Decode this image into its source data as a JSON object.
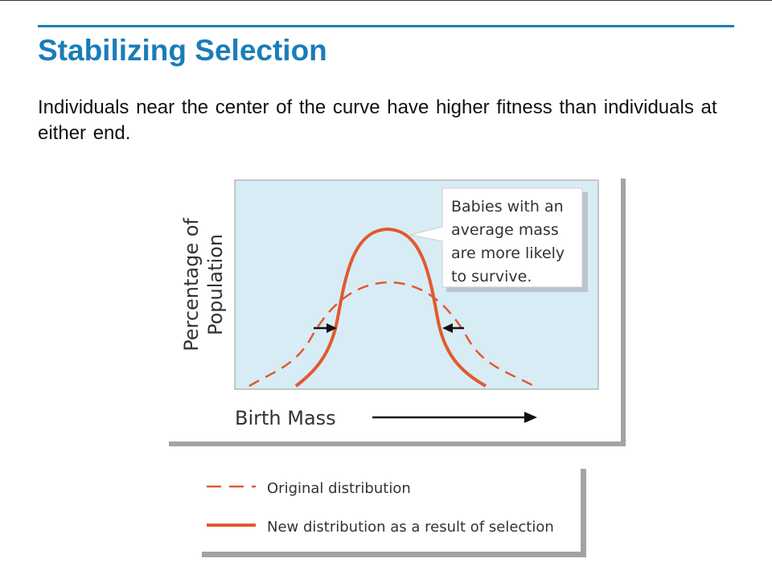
{
  "slide": {
    "title": "Stabilizing Selection",
    "body": "Individuals near the center of the curve have higher fitness than individuals at either end."
  },
  "figure": {
    "ylabel_line1": "Percentage of",
    "ylabel_line2": "Population",
    "xlabel": "Birth Mass",
    "callout": [
      "Babies with an",
      "average mass",
      "are more likely",
      "to survive."
    ],
    "legend": [
      {
        "label": "Original distribution",
        "style": "dashed"
      },
      {
        "label": "New distribution as a result of selection",
        "style": "solid"
      }
    ]
  },
  "colors": {
    "title": "#1a7db8",
    "curve": "#e05a2e",
    "plot_bg": "#d8ecf6",
    "shadow": "#9a9a9a"
  }
}
